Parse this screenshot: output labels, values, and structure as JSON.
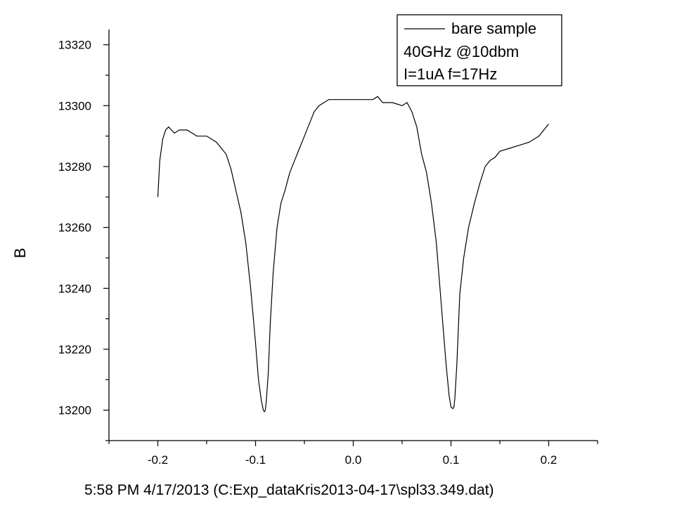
{
  "chart_data": {
    "type": "line",
    "title": "",
    "xlabel": "",
    "ylabel": "B",
    "xlim": [
      -0.25,
      0.25
    ],
    "ylim": [
      13190,
      13325
    ],
    "x_ticks": [
      "-0.2",
      "-0.1",
      "0.0",
      "0.1",
      "0.2"
    ],
    "y_ticks": [
      "13200",
      "13220",
      "13240",
      "13260",
      "13280",
      "13300",
      "13320"
    ],
    "grid": false,
    "legend": {
      "placement": "top-right",
      "lines": [
        "bare sample",
        "40GHz @10dbm",
        "I=1uA f=17Hz"
      ]
    },
    "series": [
      {
        "name": "bare sample",
        "color": "#000000",
        "x": [
          -0.2,
          -0.198,
          -0.195,
          -0.192,
          -0.189,
          -0.186,
          -0.183,
          -0.178,
          -0.17,
          -0.16,
          -0.15,
          -0.14,
          -0.135,
          -0.13,
          -0.125,
          -0.12,
          -0.115,
          -0.11,
          -0.105,
          -0.1,
          -0.097,
          -0.094,
          -0.092,
          -0.091,
          -0.09,
          -0.089,
          -0.087,
          -0.085,
          -0.082,
          -0.078,
          -0.074,
          -0.07,
          -0.065,
          -0.06,
          -0.055,
          -0.05,
          -0.045,
          -0.04,
          -0.035,
          -0.03,
          -0.025,
          -0.02,
          -0.01,
          0.0,
          0.01,
          0.02,
          0.025,
          0.03,
          0.04,
          0.05,
          0.055,
          0.06,
          0.065,
          0.07,
          0.075,
          0.08,
          0.085,
          0.09,
          0.095,
          0.098,
          0.1,
          0.102,
          0.103,
          0.104,
          0.106,
          0.109,
          0.113,
          0.118,
          0.124,
          0.13,
          0.135,
          0.14,
          0.145,
          0.15,
          0.16,
          0.17,
          0.18,
          0.19,
          0.195,
          0.2
        ],
        "values": [
          13270,
          13282,
          13289,
          13292,
          13293,
          13292,
          13291,
          13292,
          13292,
          13290,
          13290,
          13288,
          13286,
          13284,
          13279,
          13272,
          13265,
          13255,
          13240,
          13222,
          13210,
          13203,
          13200,
          13199.5,
          13200,
          13203,
          13212,
          13228,
          13245,
          13260,
          13268,
          13272,
          13278,
          13282,
          13286,
          13290,
          13294,
          13298,
          13300,
          13301,
          13302,
          13302,
          13302,
          13302,
          13302,
          13302,
          13303,
          13301,
          13301,
          13300,
          13301,
          13298,
          13293,
          13284,
          13278,
          13268,
          13255,
          13235,
          13215,
          13205,
          13201,
          13200.5,
          13201,
          13204,
          13215,
          13238,
          13250,
          13260,
          13268,
          13275,
          13280,
          13282,
          13283,
          13285,
          13286,
          13287,
          13288,
          13290,
          13292,
          13294
        ]
      }
    ]
  },
  "footer": {
    "caption": "5:58 PM  4/17/2013 (C:Exp_dataKris2013-04-17\\spl33.349.dat)"
  }
}
